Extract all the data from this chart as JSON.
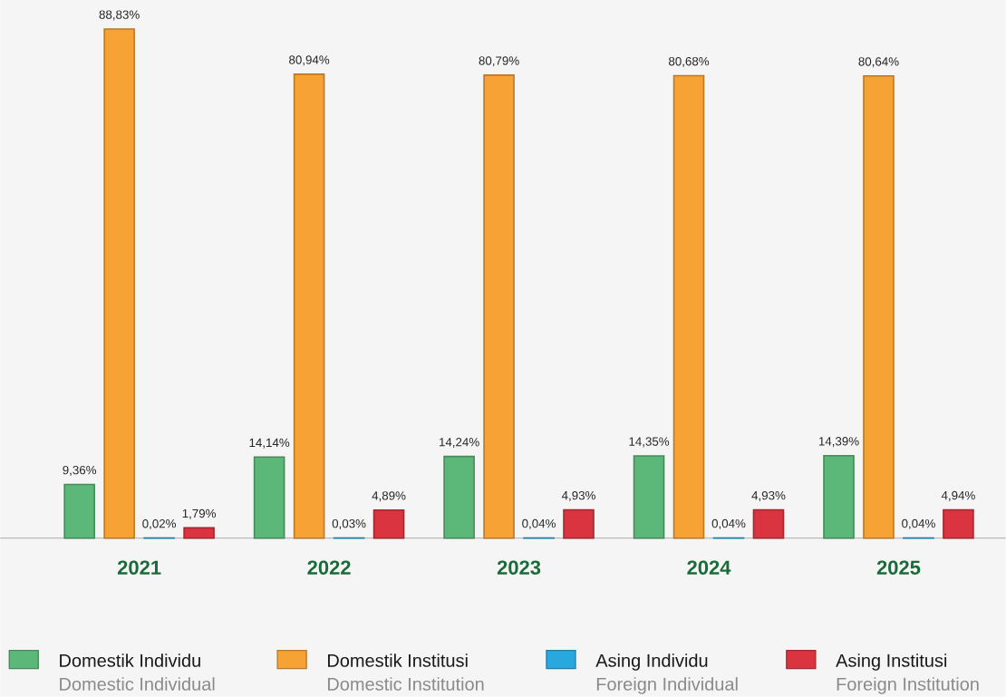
{
  "chart_data": {
    "type": "bar",
    "categories": [
      "2021",
      "2022",
      "2023",
      "2024",
      "2025"
    ],
    "series": [
      {
        "name": "Domestik Individu",
        "color": "#5cb878",
        "values": [
          9.36,
          14.14,
          14.24,
          14.35,
          14.39
        ],
        "value_labels": [
          "9,36%",
          "14,14%",
          "14,24%",
          "14,35%",
          "14,39%"
        ]
      },
      {
        "name": "Domestik Institusi",
        "color": "#f7a235",
        "values": [
          88.83,
          80.94,
          80.79,
          80.68,
          80.64
        ],
        "value_labels": [
          "88,83%",
          "80,94%",
          "80,79%",
          "80,68%",
          "80,64%"
        ]
      },
      {
        "name": "Asing Individu",
        "color": "#29a8e0",
        "values": [
          0.02,
          0.03,
          0.04,
          0.04,
          0.04
        ],
        "value_labels": [
          "0,02%",
          "0,03%",
          "0,04%",
          "0,04%",
          "0,04%"
        ]
      },
      {
        "name": "Asing Institusi",
        "color": "#d9343f",
        "values": [
          1.79,
          4.89,
          4.93,
          4.93,
          4.94
        ],
        "value_labels": [
          "1,79%",
          "4,89%",
          "4,93%",
          "4,93%",
          "4,94%"
        ]
      }
    ],
    "annotations": [
      "Domestic Individual",
      "Domestic Institution",
      "Foreign Individual",
      "Foreign Institution"
    ],
    "legend": "bottom"
  }
}
